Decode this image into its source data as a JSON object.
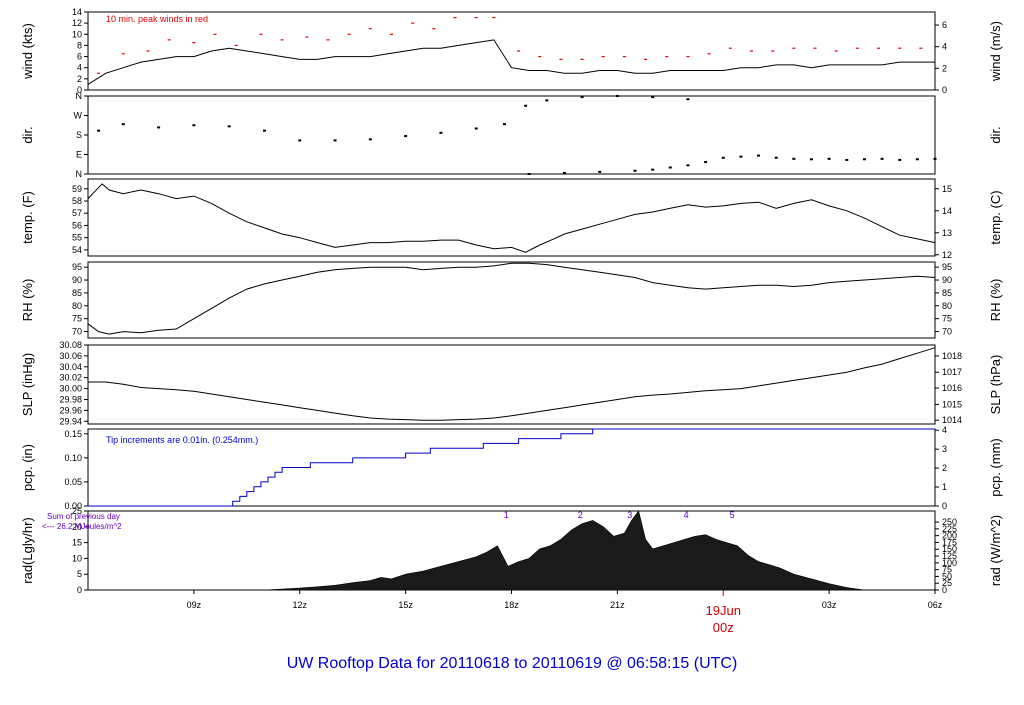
{
  "page": {
    "title": "UW Rooftop Data for 20110618  to  20110619 @ 06:58:15  (UTC)"
  },
  "colors": {
    "title": "#0000cc",
    "date_marker": "#cc0000",
    "peak_wind": "#dd0000",
    "precip": "#0000cc",
    "annotation": "#6600cc",
    "line": "#000000",
    "radiation_fill": "#1a1a1a"
  },
  "x_axis": {
    "unit": "hours since 20110618 06Z",
    "range": [
      0,
      24
    ],
    "ticks": [
      {
        "x": 3,
        "label": "09z"
      },
      {
        "x": 6,
        "label": "12z"
      },
      {
        "x": 9,
        "label": "15z"
      },
      {
        "x": 12,
        "label": "18z"
      },
      {
        "x": 15,
        "label": "21z"
      },
      {
        "x": 21,
        "label": "03z"
      },
      {
        "x": 24,
        "label": "06z"
      }
    ],
    "date_marker": {
      "x": 18,
      "line1": "19Jun",
      "line2": "00z"
    }
  },
  "chart_data": [
    {
      "id": "wind",
      "type": "line",
      "ylabel_left": "wind (kts)",
      "ylabel_right": "wind (m/s)",
      "ylim": [
        0,
        14
      ],
      "left_ticks": [
        0,
        2,
        4,
        6,
        8,
        10,
        12,
        14
      ],
      "right_ticks": [
        {
          "label": "0",
          "v": 0
        },
        {
          "label": "2",
          "v": 3.89
        },
        {
          "label": "4",
          "v": 7.78
        },
        {
          "label": "6",
          "v": 11.66
        }
      ],
      "annotation": "10 min. peak winds in red",
      "series": [
        {
          "kind": "sustained",
          "x": [
            0,
            0.5,
            1,
            1.5,
            2,
            2.5,
            3,
            3.5,
            4,
            4.5,
            5,
            5.5,
            6,
            6.5,
            7,
            7.5,
            8,
            8.5,
            9,
            9.5,
            10,
            10.5,
            11,
            11.5,
            12,
            12.5,
            13,
            13.5,
            14,
            14.5,
            15,
            15.5,
            16,
            16.5,
            17,
            17.5,
            18,
            18.5,
            19,
            19.5,
            20,
            20.5,
            21,
            21.5,
            22,
            22.5,
            23,
            23.5,
            24
          ],
          "values": [
            1,
            3,
            4,
            5,
            5.5,
            6,
            6,
            7,
            7.5,
            7,
            6.5,
            6,
            5.5,
            5.5,
            6,
            6,
            6,
            6.5,
            7,
            7.5,
            7.5,
            8,
            8.5,
            9,
            4,
            3.5,
            3.5,
            3,
            3,
            3.5,
            3.5,
            3,
            3,
            3.5,
            3.5,
            3.5,
            3.5,
            4,
            4,
            4.5,
            4.5,
            4,
            4.5,
            4.5,
            4.5,
            4.5,
            5,
            5,
            5
          ]
        },
        {
          "kind": "peak",
          "x": [
            0.3,
            1,
            1.7,
            2.3,
            3,
            3.6,
            4.2,
            4.9,
            5.5,
            6.2,
            6.8,
            7.4,
            8,
            8.6,
            9.2,
            9.8,
            10.4,
            11,
            11.5,
            12.2,
            12.8,
            13.4,
            14,
            14.6,
            15.2,
            15.8,
            16.4,
            17,
            17.6,
            18.2,
            18.8,
            19.4,
            20,
            20.6,
            21.2,
            21.8,
            22.4,
            23,
            23.6
          ],
          "values": [
            3,
            6.5,
            7,
            9,
            8.5,
            10,
            8,
            10,
            9,
            9.5,
            9,
            10,
            11,
            10,
            12,
            11,
            13,
            13,
            13,
            7,
            6,
            5.5,
            5.5,
            6,
            6,
            5.5,
            6,
            6,
            6.5,
            7.5,
            7,
            7,
            7.5,
            7.5,
            7,
            7.5,
            7.5,
            7.5,
            7.5
          ]
        }
      ]
    },
    {
      "id": "dir",
      "type": "scatter",
      "ylabel_left": "dir.",
      "ylabel_right": "dir.",
      "ylim": [
        0,
        360
      ],
      "left_ticks": [
        {
          "label": "N",
          "v": 0
        },
        {
          "label": "E",
          "v": 90
        },
        {
          "label": "S",
          "v": 180
        },
        {
          "label": "W",
          "v": 270
        },
        {
          "label": "N",
          "v": 360
        }
      ],
      "series": [
        {
          "x": [
            0.3,
            1,
            2,
            3,
            4,
            5,
            6,
            7,
            8,
            9,
            10,
            11,
            11.8,
            12.4,
            13,
            14,
            15,
            16,
            17
          ],
          "values": [
            200,
            230,
            215,
            225,
            220,
            200,
            155,
            155,
            160,
            175,
            190,
            210,
            230,
            315,
            340,
            355,
            360,
            355,
            345
          ]
        },
        {
          "x": [
            12.5,
            13.5,
            14.5,
            15.5,
            16,
            16.5,
            17,
            17.5,
            18,
            18.5,
            19,
            19.5,
            20,
            20.5,
            21,
            21.5,
            22,
            22.5,
            23,
            23.5,
            24
          ],
          "values": [
            0,
            5,
            10,
            15,
            20,
            30,
            40,
            55,
            75,
            80,
            85,
            75,
            70,
            68,
            70,
            65,
            68,
            70,
            65,
            68,
            70
          ]
        }
      ]
    },
    {
      "id": "temp",
      "type": "line",
      "ylabel_left": "temp. (F)",
      "ylabel_right": "temp. (C)",
      "ylim": [
        53.5,
        59.8
      ],
      "left_ticks": [
        54,
        55,
        56,
        57,
        58,
        59
      ],
      "right_ticks": [
        {
          "label": "12",
          "v": 53.6
        },
        {
          "label": "13",
          "v": 55.4
        },
        {
          "label": "14",
          "v": 57.2
        },
        {
          "label": "15",
          "v": 59.0
        }
      ],
      "series": [
        {
          "x": [
            0,
            0.2,
            0.4,
            0.6,
            1,
            1.5,
            2,
            2.5,
            3,
            3.5,
            4,
            4.5,
            5,
            5.5,
            6,
            6.5,
            7,
            7.5,
            8,
            8.5,
            9,
            9.5,
            10,
            10.5,
            11,
            11.5,
            12,
            12.4,
            12.8,
            13.2,
            13.5,
            14,
            14.5,
            15,
            15.5,
            16,
            16.5,
            17,
            17.5,
            18,
            18.5,
            19,
            19.5,
            20,
            20.5,
            21,
            21.5,
            22,
            22.5,
            23,
            23.5,
            24
          ],
          "values": [
            58.2,
            58.8,
            59.4,
            58.9,
            58.6,
            58.9,
            58.6,
            58.2,
            58.4,
            57.8,
            57,
            56.3,
            55.8,
            55.3,
            55,
            54.6,
            54.2,
            54.4,
            54.6,
            54.6,
            54.7,
            54.7,
            54.8,
            54.8,
            54.4,
            54.1,
            54.2,
            53.8,
            54.4,
            54.9,
            55.3,
            55.7,
            56.1,
            56.5,
            56.9,
            57.1,
            57.4,
            57.7,
            57.5,
            57.6,
            57.8,
            57.9,
            57.4,
            57.8,
            58.1,
            57.6,
            57.2,
            56.6,
            55.9,
            55.2,
            54.9,
            54.6
          ]
        }
      ]
    },
    {
      "id": "rh",
      "type": "line",
      "ylabel_left": "RH (%)",
      "ylabel_right": "RH (%)",
      "ylim": [
        67.5,
        97
      ],
      "left_ticks": [
        70,
        75,
        80,
        85,
        90,
        95
      ],
      "right_ticks": [
        {
          "label": "70",
          "v": 70
        },
        {
          "label": "75",
          "v": 75
        },
        {
          "label": "80",
          "v": 80
        },
        {
          "label": "85",
          "v": 85
        },
        {
          "label": "90",
          "v": 90
        },
        {
          "label": "95",
          "v": 95
        }
      ],
      "series": [
        {
          "x": [
            0,
            0.3,
            0.6,
            1,
            1.5,
            2,
            2.5,
            3,
            3.5,
            4,
            4.5,
            5,
            5.5,
            6,
            6.5,
            7,
            7.5,
            8,
            8.5,
            9,
            9.5,
            10,
            10.5,
            11,
            11.5,
            12,
            12.5,
            13,
            13.5,
            14,
            14.5,
            15,
            15.5,
            16,
            16.5,
            17,
            17.5,
            18,
            18.5,
            19,
            19.5,
            20,
            20.5,
            21,
            21.5,
            22,
            22.5,
            23,
            23.5,
            24
          ],
          "values": [
            73,
            70,
            69,
            70,
            69.5,
            70.5,
            71,
            75,
            79,
            83,
            86.5,
            88.5,
            90,
            91.5,
            93,
            94,
            94.5,
            95,
            95,
            95,
            94,
            94.5,
            95,
            95,
            95.5,
            96.5,
            96.5,
            96,
            95,
            94,
            93,
            92,
            91,
            89,
            88,
            87,
            86.5,
            87,
            87.5,
            88,
            88,
            87.5,
            88,
            89,
            89.5,
            90,
            90.5,
            91,
            91.5,
            91
          ]
        }
      ]
    },
    {
      "id": "slp",
      "type": "line",
      "ylabel_left": "SLP (inHg)",
      "ylabel_right": "SLP (hPa)",
      "ylim": [
        29.935,
        30.08
      ],
      "left_ticks": [
        {
          "label": "29.94",
          "v": 29.94
        },
        {
          "label": "29.96",
          "v": 29.96
        },
        {
          "label": "29.98",
          "v": 29.98
        },
        {
          "label": "30.00",
          "v": 30.0
        },
        {
          "label": "30.02",
          "v": 30.02
        },
        {
          "label": "30.04",
          "v": 30.04
        },
        {
          "label": "30.06",
          "v": 30.06
        },
        {
          "label": "30.08",
          "v": 30.08
        }
      ],
      "right_ticks": [
        {
          "label": "1014",
          "v": 29.942
        },
        {
          "label": "1015",
          "v": 29.971
        },
        {
          "label": "1016",
          "v": 30.001
        },
        {
          "label": "1017",
          "v": 30.03
        },
        {
          "label": "1018",
          "v": 30.06
        }
      ],
      "series": [
        {
          "x": [
            0,
            0.5,
            1,
            1.5,
            2,
            2.5,
            3,
            3.5,
            4,
            4.5,
            5,
            5.5,
            6,
            6.5,
            7,
            7.5,
            8,
            8.5,
            9,
            9.5,
            10,
            10.5,
            11,
            11.5,
            12,
            12.5,
            13,
            13.5,
            14,
            14.5,
            15,
            15.5,
            16,
            16.5,
            17,
            17.5,
            18,
            18.5,
            19,
            19.5,
            20,
            20.5,
            21,
            21.5,
            22,
            22.5,
            23,
            23.5,
            24
          ],
          "values": [
            30.012,
            30.012,
            30.008,
            30.002,
            30.0,
            29.998,
            29.995,
            29.99,
            29.985,
            29.98,
            29.975,
            29.97,
            29.965,
            29.96,
            29.955,
            29.95,
            29.946,
            29.944,
            29.943,
            29.942,
            29.942,
            29.943,
            29.944,
            29.946,
            29.95,
            29.955,
            29.96,
            29.965,
            29.97,
            29.975,
            29.98,
            29.985,
            29.988,
            29.99,
            29.993,
            29.996,
            29.998,
            30.0,
            30.005,
            30.01,
            30.015,
            30.02,
            30.025,
            30.03,
            30.038,
            30.045,
            30.055,
            30.065,
            30.075
          ]
        }
      ]
    },
    {
      "id": "pcp",
      "type": "line",
      "ylabel_left": "pcp. (in)",
      "ylabel_right": "pcp. (mm)",
      "ylim": [
        0,
        0.16
      ],
      "left_ticks": [
        {
          "label": "0.00",
          "v": 0
        },
        {
          "label": "0.05",
          "v": 0.05
        },
        {
          "label": "0.10",
          "v": 0.1
        },
        {
          "label": "0.15",
          "v": 0.15
        }
      ],
      "right_ticks": [
        {
          "label": "0",
          "v": 0
        },
        {
          "label": "1",
          "v": 0.03937
        },
        {
          "label": "2",
          "v": 0.07874
        },
        {
          "label": "3",
          "v": 0.11811
        },
        {
          "label": "4",
          "v": 0.15748
        }
      ],
      "annotation": "Tip increments are 0.01in. (0.254mm.)",
      "series": [
        {
          "x": [
            0,
            4.1,
            4.3,
            4.5,
            4.7,
            4.9,
            5.1,
            5.3,
            5.5,
            5.7,
            6.3,
            6.7,
            7.0,
            7.5,
            8.0,
            9.0,
            9.7,
            11.2,
            11.6,
            12.2,
            12.5,
            13.4,
            14.3,
            24
          ],
          "values": [
            0,
            0.01,
            0.02,
            0.03,
            0.04,
            0.05,
            0.06,
            0.07,
            0.08,
            0.08,
            0.09,
            0.09,
            0.09,
            0.1,
            0.1,
            0.11,
            0.12,
            0.13,
            0.13,
            0.14,
            0.14,
            0.15,
            0.16,
            0.16
          ]
        }
      ]
    },
    {
      "id": "rad",
      "type": "area",
      "ylabel_left": "rad(Lgly/hr)",
      "ylabel_right": "rad (W/m^2)",
      "ylim": [
        0,
        25
      ],
      "left_ticks": [
        0,
        5,
        10,
        15,
        20,
        25
      ],
      "right_ticks": [
        {
          "label": "0",
          "v": 0
        },
        {
          "label": "25",
          "v": 2.15
        },
        {
          "label": "50",
          "v": 4.3
        },
        {
          "label": "75",
          "v": 6.45
        },
        {
          "label": "100",
          "v": 8.6
        },
        {
          "label": "125",
          "v": 10.75
        },
        {
          "label": "150",
          "v": 12.9
        },
        {
          "label": "175",
          "v": 15.05
        },
        {
          "label": "200",
          "v": 17.2
        },
        {
          "label": "225",
          "v": 19.35
        },
        {
          "label": "250",
          "v": 21.5
        }
      ],
      "annotation_line1": "Sum of previous day",
      "annotation_line2": "<--- 26.2  MJoules/m^2",
      "hour_marks": [
        {
          "x": 11.85,
          "label": "1"
        },
        {
          "x": 13.95,
          "label": "2"
        },
        {
          "x": 15.35,
          "label": "3"
        },
        {
          "x": 16.95,
          "label": "4"
        },
        {
          "x": 18.25,
          "label": "5"
        }
      ],
      "series": [
        {
          "x": [
            5,
            5.5,
            6,
            6.5,
            7,
            7.5,
            8,
            8.3,
            8.6,
            9,
            9.5,
            10,
            10.5,
            11,
            11.3,
            11.6,
            11.9,
            12.2,
            12.5,
            12.8,
            13.1,
            13.4,
            13.7,
            14,
            14.3,
            14.6,
            14.9,
            15.2,
            15.4,
            15.6,
            15.8,
            16,
            16.3,
            16.6,
            16.9,
            17.2,
            17.5,
            17.8,
            18.1,
            18.4,
            18.7,
            19,
            19.3,
            19.6,
            20,
            20.5,
            21,
            21.5,
            22
          ],
          "values": [
            0,
            0.3,
            0.6,
            1,
            1.5,
            2.3,
            3,
            4,
            3.5,
            5,
            6,
            7.5,
            9,
            10.5,
            12,
            14,
            7.5,
            9,
            10,
            13,
            14,
            16,
            19,
            21,
            22,
            20,
            17,
            18,
            22,
            25,
            16,
            13,
            14,
            15,
            16,
            17,
            17.5,
            16,
            15,
            14,
            11,
            9,
            8,
            7,
            5,
            3.5,
            2,
            0.8,
            0
          ]
        }
      ]
    }
  ]
}
